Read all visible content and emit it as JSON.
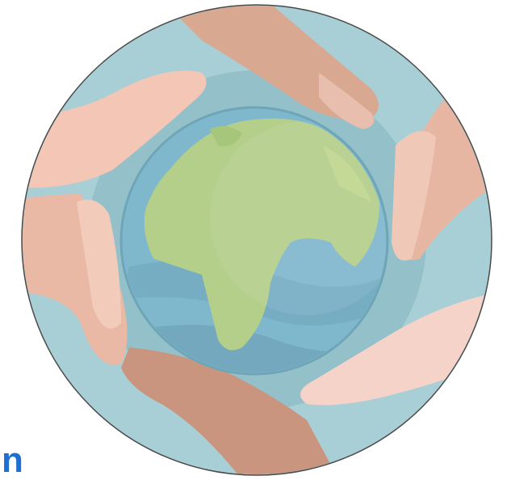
{
  "caption": "n"
}
